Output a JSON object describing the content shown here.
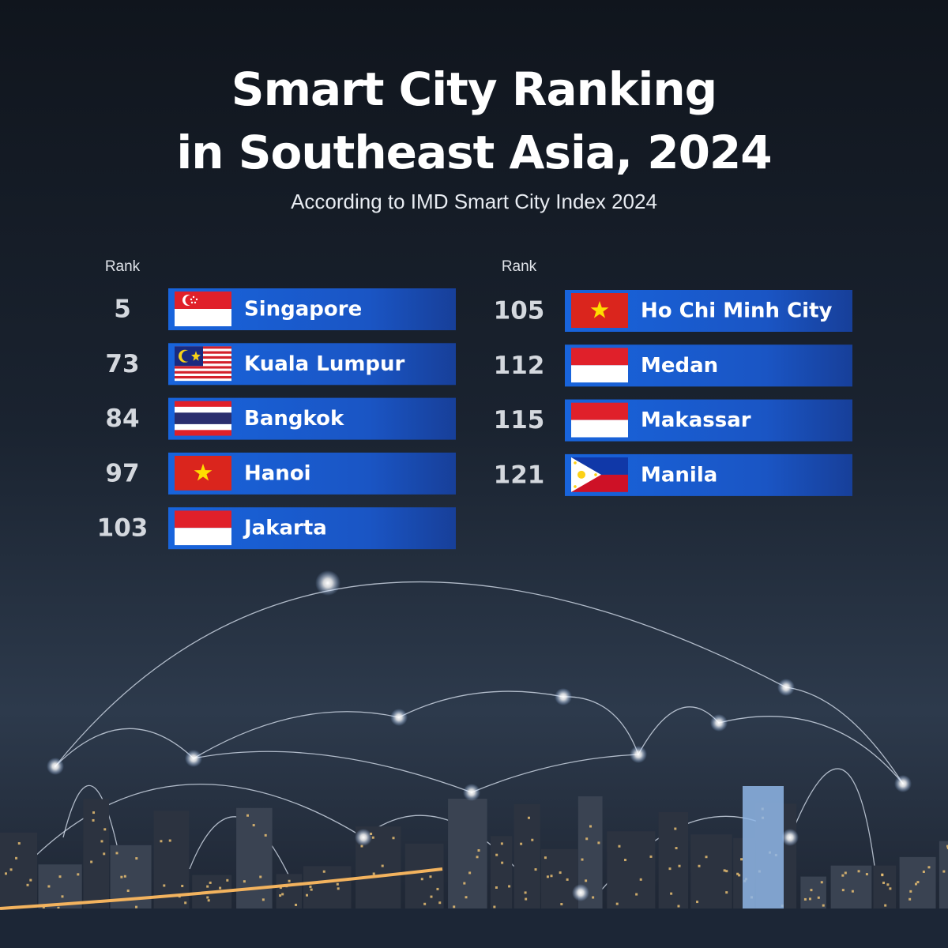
{
  "header": {
    "title": [
      "Smart City Ranking",
      "in Southeast Asia, 2024"
    ],
    "subtitle": "According to IMD Smart City Index 2024"
  },
  "columns": [
    {
      "rank_label": "Rank",
      "rows": [
        {
          "rank": 5,
          "city": "Singapore"
        },
        {
          "rank": 73,
          "city": "Kuala Lumpur"
        },
        {
          "rank": 84,
          "city": "Bangkok"
        },
        {
          "rank": 97,
          "city": "Hanoi"
        },
        {
          "rank": 103,
          "city": "Jakarta"
        }
      ]
    },
    {
      "rank_label": "Rank",
      "rows": [
        {
          "rank": 105,
          "city": "Ho Chi Minh City"
        },
        {
          "rank": 112,
          "city": "Medan"
        },
        {
          "rank": 115,
          "city": "Makassar"
        },
        {
          "rank": 121,
          "city": "Manila"
        }
      ]
    }
  ]
}
